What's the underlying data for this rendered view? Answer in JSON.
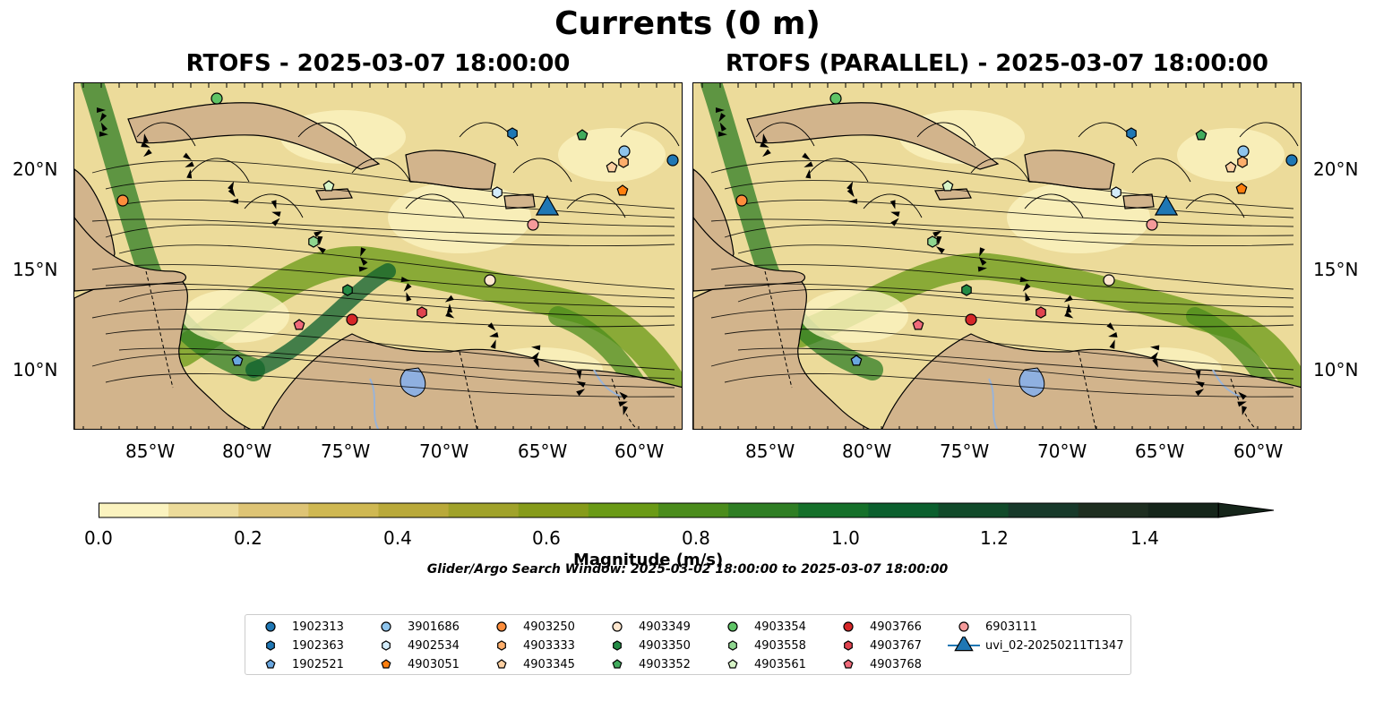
{
  "figure": {
    "title": "Currents (0 m)",
    "left_panel_title": "RTOFS - 2025-03-07 18:00:00",
    "right_panel_title": "RTOFS (PARALLEL) - 2025-03-07 18:00:00",
    "lon_labels": [
      "85°W",
      "80°W",
      "75°W",
      "70°W",
      "65°W",
      "60°W"
    ],
    "lat_labels": [
      "20°N",
      "15°N",
      "10°N"
    ]
  },
  "colorbar": {
    "label": "Magnitude (m/s)",
    "tick_labels": [
      "0.0",
      "0.2",
      "0.4",
      "0.6",
      "0.8",
      "1.0",
      "1.2",
      "1.4"
    ],
    "colors": [
      "#fbf3bf",
      "#ecdb9a",
      "#dec475",
      "#cfb852",
      "#b9a93a",
      "#a0a22a",
      "#869b1a",
      "#6a9a16",
      "#4b8c1c",
      "#2f7e24",
      "#15702a",
      "#0b5f2e",
      "#114a2a",
      "#17392a",
      "#1e2e20",
      "#15251a"
    ]
  },
  "search_window": "Glider/Argo Search Window: 2025-03-02 18:00:00 to 2025-03-07 18:00:00",
  "legend": {
    "items": [
      {
        "label": "1902313",
        "marker": "circle",
        "color": "#1f77b4"
      },
      {
        "label": "1902363",
        "marker": "hexagon",
        "color": "#1f77b4"
      },
      {
        "label": "1902521",
        "marker": "pentagon",
        "color": "#6aa7e0"
      },
      {
        "label": "3901686",
        "marker": "circle",
        "color": "#8ec4ec"
      },
      {
        "label": "4902534",
        "marker": "hexagon",
        "color": "#d3ecfa"
      },
      {
        "label": "4903051",
        "marker": "pentagon",
        "color": "#ff7f0e"
      },
      {
        "label": "4903250",
        "marker": "circle",
        "color": "#fd8d3c"
      },
      {
        "label": "4903333",
        "marker": "hexagon",
        "color": "#fdae6b"
      },
      {
        "label": "4903345",
        "marker": "pentagon",
        "color": "#fdd0a2"
      },
      {
        "label": "4903349",
        "marker": "circle",
        "color": "#fee6ce"
      },
      {
        "label": "4903350",
        "marker": "hexagon",
        "color": "#238b45"
      },
      {
        "label": "4903352",
        "marker": "pentagon",
        "color": "#41ab5d"
      },
      {
        "label": "4903354",
        "marker": "circle",
        "color": "#5fc466"
      },
      {
        "label": "4903558",
        "marker": "hexagon",
        "color": "#8fd690"
      },
      {
        "label": "4903561",
        "marker": "pentagon",
        "color": "#d8f5c8"
      },
      {
        "label": "4903766",
        "marker": "circle",
        "color": "#d62728"
      },
      {
        "label": "4903767",
        "marker": "hexagon",
        "color": "#e0434f"
      },
      {
        "label": "4903768",
        "marker": "pentagon",
        "color": "#f06a7a"
      },
      {
        "label": "6903111",
        "marker": "circle",
        "color": "#f59a9a"
      },
      {
        "label": "uvi_02-20250211T1347",
        "marker": "triangle",
        "color": "#1f77b4"
      }
    ]
  }
}
